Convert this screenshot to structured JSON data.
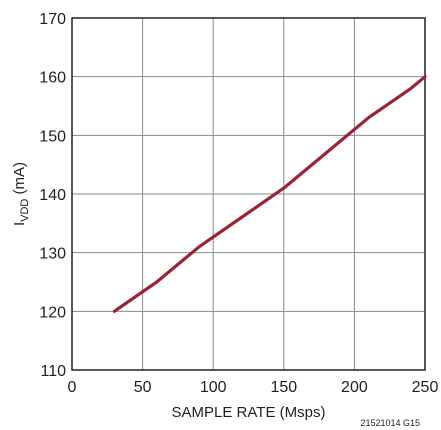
{
  "chart_data": {
    "type": "line",
    "title": "",
    "xlabel": "SAMPLE RATE (Msps)",
    "ylabel_main": "I",
    "ylabel_sub": "VDD",
    "ylabel_unit": " (mA)",
    "figure_id": "21521014 G15",
    "xlim": [
      0,
      250
    ],
    "ylim": [
      110,
      170
    ],
    "xticks": [
      0,
      50,
      100,
      150,
      200,
      250
    ],
    "yticks": [
      110,
      120,
      130,
      140,
      150,
      160,
      170
    ],
    "grid": true,
    "line_color": "#9b2335",
    "series": [
      {
        "x": [
          30,
          60,
          90,
          120,
          150,
          180,
          210,
          240,
          250
        ],
        "y": [
          120,
          125,
          131,
          136,
          141,
          147,
          153,
          158,
          160
        ]
      }
    ]
  }
}
